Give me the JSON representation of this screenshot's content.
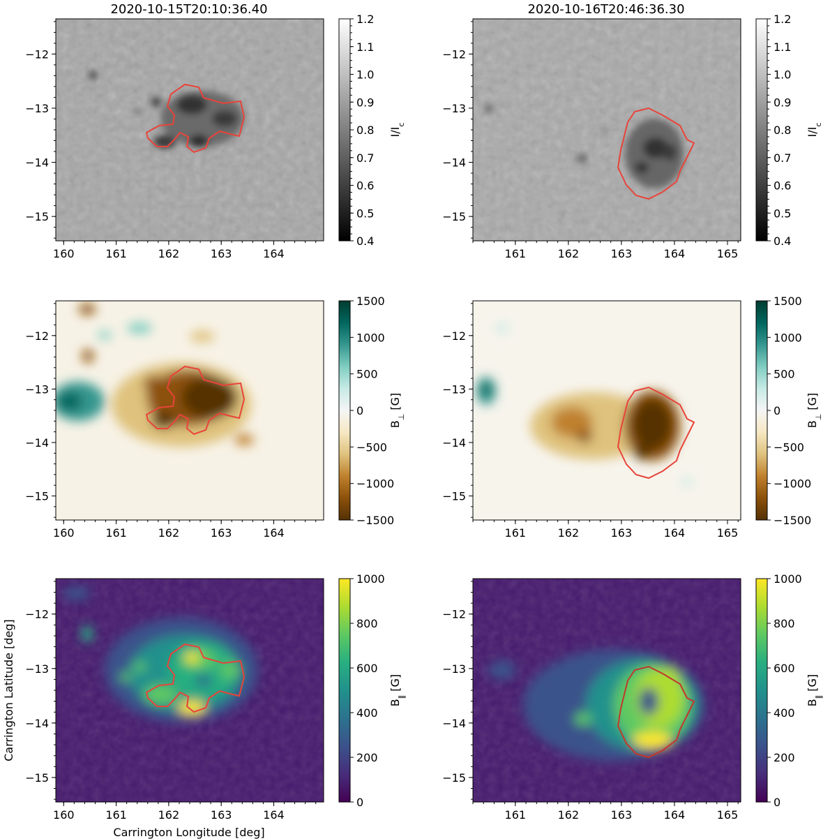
{
  "chart_data": [
    {
      "type": "heatmap",
      "title": "2020-10-15T20:10:36.40",
      "quantity": "I/I_c",
      "colorbar_label": "I/I",
      "colorbar_sub": "c",
      "cmap": "gray",
      "vmin": 0.4,
      "vmax": 1.2,
      "colorbar_ticks": [
        "0.4",
        "0.5",
        "0.6",
        "0.7",
        "0.8",
        "0.9",
        "1.0",
        "1.1",
        "1.2"
      ],
      "xlim": [
        159.85,
        164.95
      ],
      "ylim": [
        -15.45,
        -11.35
      ],
      "x_ticks": [
        "160",
        "161",
        "162",
        "163",
        "164"
      ],
      "y_ticks": [
        "-12",
        "-13",
        "-14",
        "-15"
      ],
      "xlabel": "",
      "ylabel": ""
    },
    {
      "type": "heatmap",
      "title": "2020-10-16T20:46:36.30",
      "quantity": "I/I_c",
      "colorbar_label": "I/I",
      "colorbar_sub": "c",
      "cmap": "gray",
      "vmin": 0.4,
      "vmax": 1.2,
      "colorbar_ticks": [
        "0.4",
        "0.5",
        "0.6",
        "0.7",
        "0.8",
        "0.9",
        "1.0",
        "1.1",
        "1.2"
      ],
      "xlim": [
        160.2,
        165.25
      ],
      "ylim": [
        -15.45,
        -11.35
      ],
      "x_ticks": [
        "161",
        "162",
        "163",
        "164",
        "165"
      ],
      "y_ticks": [
        "-12",
        "-13",
        "-14",
        "-15"
      ],
      "xlabel": "",
      "ylabel": ""
    },
    {
      "type": "heatmap",
      "quantity": "B_perp [G]",
      "colorbar_label": "B",
      "colorbar_sub": "⊥",
      "colorbar_unit": "[G]",
      "cmap": "BrBG",
      "vmin": -1500,
      "vmax": 1500,
      "colorbar_ticks": [
        "-1500",
        "-1000",
        "-500",
        "0",
        "500",
        "1000",
        "1500"
      ],
      "xlim": [
        159.85,
        164.95
      ],
      "ylim": [
        -15.45,
        -11.35
      ],
      "x_ticks": [
        "160",
        "161",
        "162",
        "163",
        "164"
      ],
      "y_ticks": [
        "-12",
        "-13",
        "-14",
        "-15"
      ],
      "xlabel": "",
      "ylabel": ""
    },
    {
      "type": "heatmap",
      "quantity": "B_perp [G]",
      "colorbar_label": "B",
      "colorbar_sub": "⊥",
      "colorbar_unit": "[G]",
      "cmap": "BrBG",
      "vmin": -1500,
      "vmax": 1500,
      "colorbar_ticks": [
        "-1500",
        "-1000",
        "-500",
        "0",
        "500",
        "1000",
        "1500"
      ],
      "xlim": [
        160.2,
        165.25
      ],
      "ylim": [
        -15.45,
        -11.35
      ],
      "x_ticks": [
        "161",
        "162",
        "163",
        "164",
        "165"
      ],
      "y_ticks": [
        "-12",
        "-13",
        "-14",
        "-15"
      ],
      "xlabel": "",
      "ylabel": ""
    },
    {
      "type": "heatmap",
      "quantity": "B_par [G]",
      "colorbar_label": "B",
      "colorbar_sub": "‖",
      "colorbar_unit": "[G]",
      "cmap": "viridis",
      "vmin": 0,
      "vmax": 1000,
      "colorbar_ticks": [
        "0",
        "200",
        "400",
        "600",
        "800",
        "1000"
      ],
      "xlim": [
        159.85,
        164.95
      ],
      "ylim": [
        -15.45,
        -11.35
      ],
      "x_ticks": [
        "160",
        "161",
        "162",
        "163",
        "164"
      ],
      "y_ticks": [
        "-12",
        "-13",
        "-14",
        "-15"
      ],
      "xlabel": "Carrington Longitude [deg]",
      "ylabel": "Carrington Latitude [deg]"
    },
    {
      "type": "heatmap",
      "quantity": "B_par [G]",
      "colorbar_label": "B",
      "colorbar_sub": "‖",
      "colorbar_unit": "[G]",
      "cmap": "viridis",
      "vmin": 0,
      "vmax": 1000,
      "colorbar_ticks": [
        "0",
        "200",
        "400",
        "600",
        "800",
        "1000"
      ],
      "xlim": [
        160.2,
        165.25
      ],
      "ylim": [
        -15.45,
        -11.35
      ],
      "x_ticks": [
        "161",
        "162",
        "163",
        "164",
        "165"
      ],
      "y_ticks": [
        "-12",
        "-13",
        "-14",
        "-15"
      ],
      "xlabel": "",
      "ylabel": ""
    }
  ],
  "colors": {
    "contour": "#e8443a",
    "gray_quiet": "#a9a9a9",
    "gray_umbra": "#2a2a2a",
    "brbg_neg": "#543005",
    "brbg_zero": "#f5f5f5",
    "brbg_pos": "#003c30",
    "viridis_low": "#440154",
    "viridis_high": "#fde725"
  }
}
